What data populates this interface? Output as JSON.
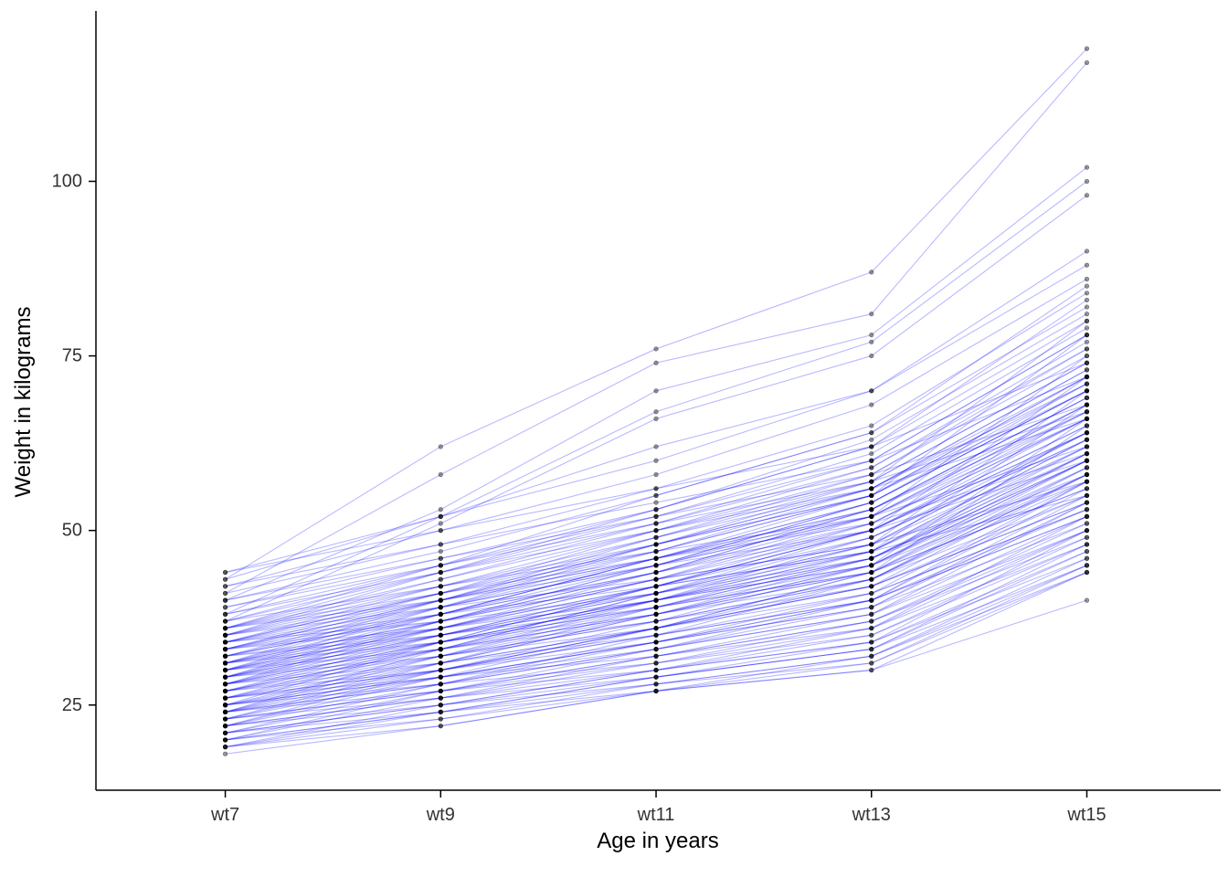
{
  "chart_data": {
    "type": "line",
    "title": "",
    "xlabel": "Age in years",
    "ylabel": "Weight in kilograms",
    "categories": [
      "wt7",
      "wt9",
      "wt11",
      "wt13",
      "wt15"
    ],
    "y_ticks": [
      25,
      50,
      75,
      100
    ],
    "ylim": [
      12.8,
      124.4
    ],
    "grid": false,
    "legend": "none",
    "line_color": "#0000ff",
    "line_alpha": 0.28,
    "point_color": "#000000",
    "point_alpha": 0.4,
    "axis_color": "#000000",
    "tick_label_color": "#333333",
    "series": [
      [
        19,
        23,
        27,
        30,
        44
      ],
      [
        20,
        24,
        28,
        32,
        46
      ],
      [
        21,
        25,
        29,
        33,
        48
      ],
      [
        22,
        26,
        30,
        34,
        50
      ],
      [
        20,
        23,
        28,
        31,
        45
      ],
      [
        21,
        24,
        29,
        33,
        47
      ],
      [
        22,
        25,
        30,
        35,
        49
      ],
      [
        19,
        22,
        27,
        31,
        44
      ],
      [
        23,
        27,
        31,
        36,
        52
      ],
      [
        23,
        26,
        32,
        37,
        51
      ],
      [
        24,
        28,
        33,
        38,
        54
      ],
      [
        24,
        29,
        34,
        39,
        55
      ],
      [
        25,
        30,
        35,
        40,
        56
      ],
      [
        25,
        29,
        33,
        40,
        57
      ],
      [
        26,
        31,
        36,
        42,
        58
      ],
      [
        26,
        30,
        35,
        41,
        57
      ],
      [
        27,
        32,
        37,
        43,
        59
      ],
      [
        27,
        31,
        36,
        44,
        60
      ],
      [
        24,
        27,
        32,
        37,
        50
      ],
      [
        25,
        28,
        33,
        38,
        52
      ],
      [
        26,
        29,
        34,
        40,
        53
      ],
      [
        27,
        30,
        36,
        42,
        55
      ],
      [
        24,
        30,
        36,
        43,
        58
      ],
      [
        25,
        31,
        38,
        45,
        60
      ],
      [
        26,
        32,
        39,
        46,
        61
      ],
      [
        27,
        33,
        40,
        48,
        62
      ],
      [
        28,
        33,
        38,
        45,
        61
      ],
      [
        28,
        34,
        40,
        47,
        63
      ],
      [
        29,
        34,
        39,
        46,
        62
      ],
      [
        29,
        35,
        41,
        48,
        64
      ],
      [
        30,
        35,
        40,
        47,
        63
      ],
      [
        30,
        36,
        42,
        50,
        66
      ],
      [
        31,
        36,
        41,
        48,
        64
      ],
      [
        31,
        37,
        43,
        51,
        67
      ],
      [
        28,
        32,
        37,
        43,
        58
      ],
      [
        29,
        33,
        38,
        44,
        59
      ],
      [
        30,
        34,
        39,
        45,
        60
      ],
      [
        31,
        35,
        40,
        46,
        61
      ],
      [
        28,
        35,
        42,
        50,
        65
      ],
      [
        29,
        36,
        43,
        52,
        68
      ],
      [
        30,
        37,
        44,
        53,
        69
      ],
      [
        31,
        38,
        45,
        54,
        70
      ],
      [
        32,
        38,
        44,
        52,
        68
      ],
      [
        32,
        39,
        46,
        54,
        71
      ],
      [
        33,
        39,
        45,
        53,
        69
      ],
      [
        33,
        40,
        47,
        55,
        72
      ],
      [
        34,
        40,
        46,
        54,
        70
      ],
      [
        34,
        41,
        48,
        56,
        73
      ],
      [
        35,
        42,
        49,
        57,
        74
      ],
      [
        35,
        41,
        47,
        55,
        71
      ],
      [
        36,
        43,
        50,
        58,
        75
      ],
      [
        36,
        42,
        48,
        56,
        72
      ],
      [
        32,
        36,
        42,
        49,
        64
      ],
      [
        33,
        37,
        43,
        50,
        65
      ],
      [
        34,
        38,
        44,
        51,
        66
      ],
      [
        35,
        39,
        45,
        52,
        67
      ],
      [
        36,
        40,
        46,
        53,
        68
      ],
      [
        37,
        44,
        51,
        59,
        76
      ],
      [
        38,
        45,
        52,
        60,
        78
      ],
      [
        39,
        46,
        53,
        62,
        80
      ],
      [
        40,
        47,
        55,
        64,
        82
      ],
      [
        41,
        48,
        56,
        65,
        84
      ],
      [
        42,
        50,
        58,
        68,
        86
      ],
      [
        43,
        52,
        62,
        70,
        88
      ],
      [
        44,
        52,
        60,
        70,
        90
      ],
      [
        43,
        62,
        76,
        87,
        119
      ],
      [
        41,
        58,
        74,
        81,
        117
      ],
      [
        40,
        53,
        70,
        78,
        102
      ],
      [
        38,
        52,
        67,
        77,
        100
      ],
      [
        37,
        51,
        66,
        75,
        98
      ],
      [
        22,
        28,
        35,
        43,
        57
      ],
      [
        23,
        29,
        36,
        44,
        58
      ],
      [
        24,
        31,
        39,
        47,
        62
      ],
      [
        25,
        32,
        40,
        49,
        63
      ],
      [
        26,
        33,
        41,
        50,
        64
      ],
      [
        27,
        34,
        42,
        51,
        66
      ],
      [
        28,
        36,
        44,
        53,
        69
      ],
      [
        29,
        37,
        45,
        54,
        70
      ],
      [
        30,
        38,
        46,
        55,
        72
      ],
      [
        31,
        39,
        47,
        56,
        73
      ],
      [
        32,
        40,
        48,
        57,
        74
      ],
      [
        33,
        41,
        49,
        58,
        76
      ],
      [
        34,
        42,
        50,
        59,
        77
      ],
      [
        35,
        43,
        51,
        60,
        78
      ],
      [
        36,
        44,
        52,
        61,
        79
      ],
      [
        37,
        45,
        53,
        63,
        81
      ],
      [
        26,
        30,
        34,
        39,
        54
      ],
      [
        25,
        29,
        32,
        36,
        50
      ],
      [
        24,
        28,
        31,
        35,
        48
      ],
      [
        23,
        27,
        30,
        34,
        46
      ],
      [
        22,
        26,
        29,
        33,
        45
      ],
      [
        21,
        25,
        28,
        32,
        44
      ],
      [
        20,
        24,
        27,
        30,
        40
      ],
      [
        28,
        31,
        35,
        40,
        52
      ],
      [
        29,
        32,
        36,
        41,
        53
      ],
      [
        30,
        33,
        37,
        42,
        54
      ],
      [
        31,
        34,
        38,
        43,
        55
      ],
      [
        32,
        35,
        39,
        44,
        56
      ],
      [
        33,
        36,
        40,
        45,
        57
      ],
      [
        34,
        37,
        41,
        46,
        58
      ],
      [
        26,
        34,
        40,
        46,
        60
      ],
      [
        27,
        35,
        41,
        47,
        61
      ],
      [
        28,
        37,
        45,
        52,
        66
      ],
      [
        29,
        38,
        46,
        53,
        67
      ],
      [
        30,
        39,
        48,
        55,
        70
      ],
      [
        31,
        40,
        49,
        56,
        71
      ],
      [
        24,
        32,
        38,
        44,
        56
      ],
      [
        23,
        30,
        36,
        42,
        54
      ],
      [
        22,
        29,
        34,
        40,
        52
      ],
      [
        21,
        27,
        32,
        38,
        50
      ],
      [
        20,
        26,
        31,
        37,
        49
      ],
      [
        19,
        24,
        29,
        34,
        47
      ],
      [
        18,
        22,
        27,
        32,
        45
      ],
      [
        19,
        25,
        30,
        36,
        48
      ],
      [
        20,
        27,
        33,
        39,
        51
      ],
      [
        21,
        28,
        34,
        41,
        53
      ],
      [
        22,
        30,
        37,
        45,
        59
      ],
      [
        23,
        31,
        38,
        46,
        60
      ],
      [
        24,
        33,
        41,
        49,
        63
      ],
      [
        25,
        34,
        42,
        50,
        64
      ],
      [
        27,
        33,
        39,
        44,
        65
      ],
      [
        28,
        34,
        40,
        45,
        66
      ],
      [
        29,
        35,
        42,
        47,
        68
      ],
      [
        30,
        36,
        43,
        48,
        70
      ],
      [
        31,
        37,
        44,
        50,
        72
      ],
      [
        32,
        38,
        46,
        52,
        75
      ],
      [
        33,
        40,
        48,
        55,
        78
      ],
      [
        34,
        41,
        50,
        57,
        80
      ],
      [
        35,
        44,
        53,
        62,
        83
      ],
      [
        36,
        45,
        55,
        64,
        85
      ],
      [
        38,
        44,
        50,
        56,
        66
      ],
      [
        40,
        46,
        52,
        58,
        68
      ],
      [
        42,
        48,
        54,
        60,
        72
      ],
      [
        44,
        50,
        56,
        62,
        74
      ],
      [
        39,
        45,
        51,
        57,
        67
      ],
      [
        37,
        42,
        47,
        52,
        62
      ],
      [
        36,
        41,
        46,
        51,
        61
      ],
      [
        35,
        40,
        45,
        50,
        60
      ],
      [
        34,
        39,
        43,
        48,
        57
      ],
      [
        33,
        38,
        42,
        47,
        55
      ]
    ]
  }
}
